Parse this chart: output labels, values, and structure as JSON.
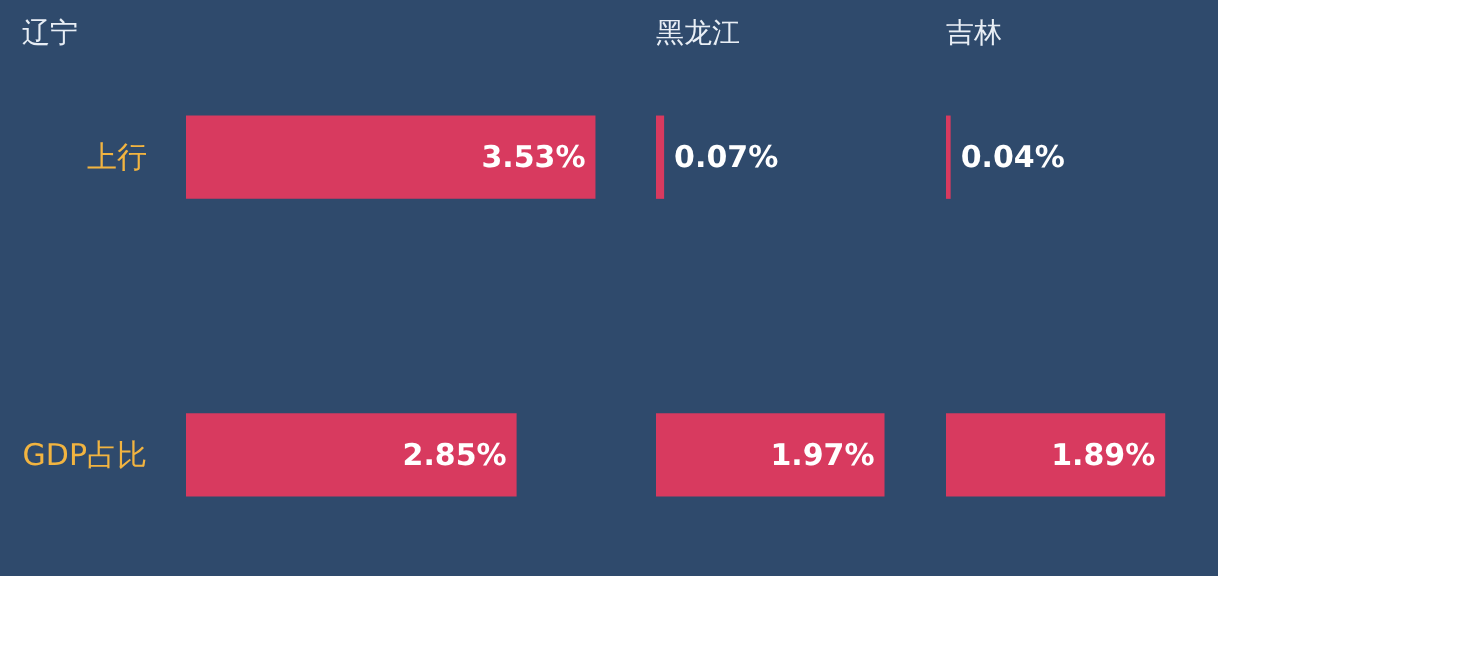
{
  "chart_data": [
    {
      "type": "bar",
      "orientation": "horizontal",
      "title": "辽宁",
      "categories": [
        "上行",
        "GDP占比"
      ],
      "tick_labels": "y",
      "series": [
        {
          "color": "#d83a5f",
          "values": [
            3.53,
            2.85
          ],
          "value_labels": [
            "3.53%",
            "2.85%"
          ]
        }
      ]
    },
    {
      "type": "bar",
      "orientation": "horizontal",
      "title": "黑龙江",
      "categories": [
        "上行",
        "GDP占比"
      ],
      "tick_labels": false,
      "series": [
        {
          "color": "#d83a5f",
          "values": [
            0.07,
            1.97
          ],
          "value_labels": [
            "0.07%",
            "1.97%"
          ]
        }
      ]
    },
    {
      "type": "bar",
      "orientation": "horizontal",
      "title": "吉林",
      "categories": [
        "上行",
        "GDP占比"
      ],
      "tick_labels": false,
      "series": [
        {
          "color": "#d83a5f",
          "values": [
            0.04,
            1.89
          ],
          "value_labels": [
            "0.04%",
            "1.89%"
          ]
        }
      ]
    }
  ]
}
